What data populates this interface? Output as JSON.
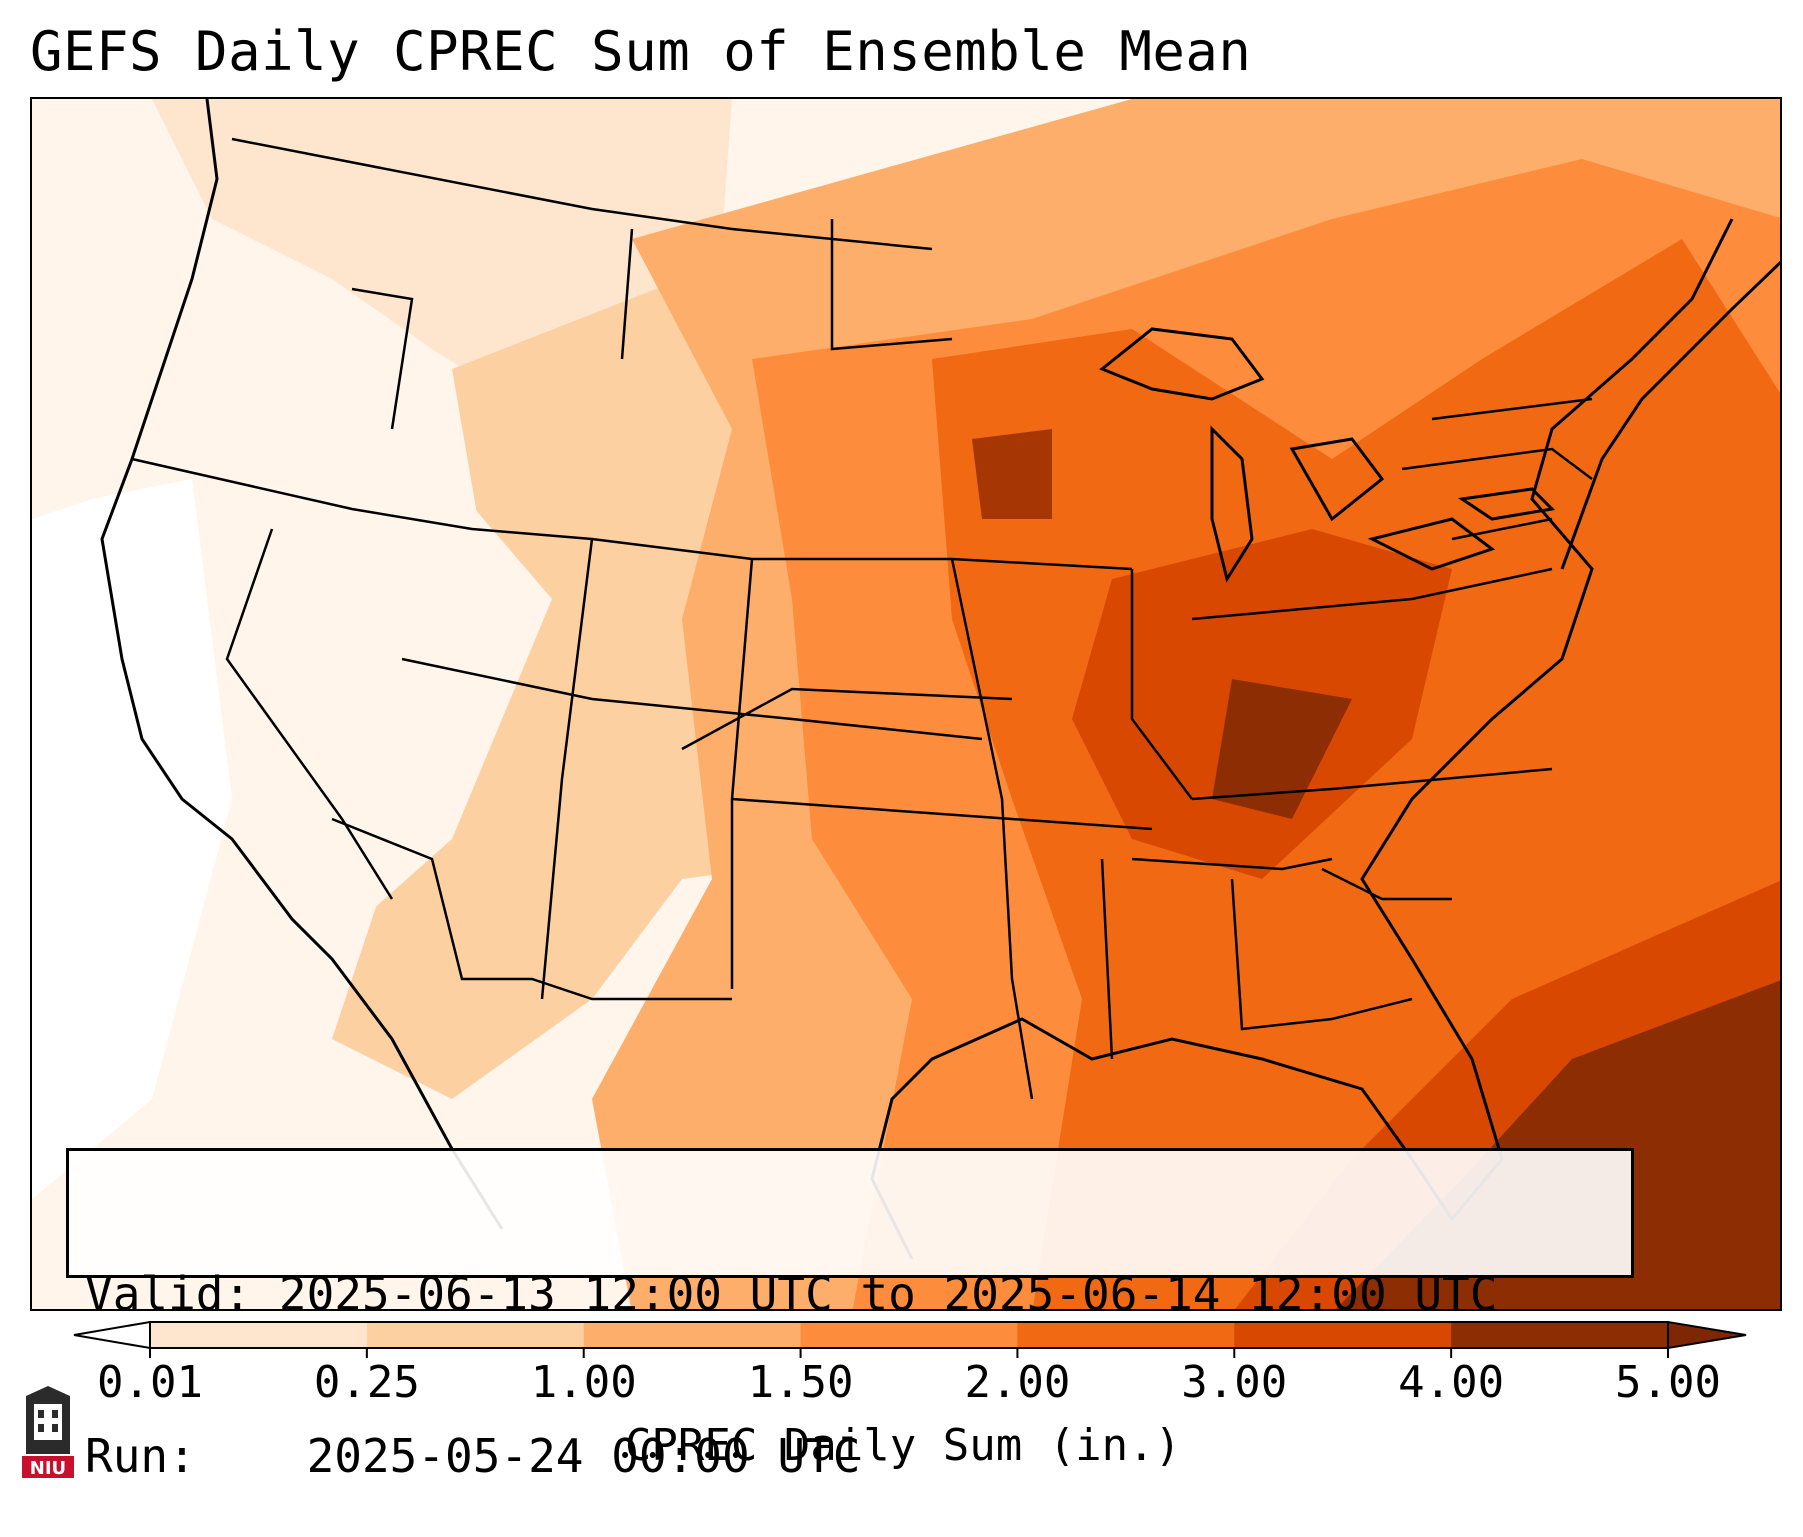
{
  "title": "GEFS Daily CPREC Sum of Ensemble Mean",
  "info": {
    "valid_label": "Valid:",
    "valid_value": "2025-06-13 12:00 UTC to 2025-06-14 12:00 UTC",
    "run_label": "Run:",
    "run_value": "2025-05-24 00:00 UTC"
  },
  "colorbar": {
    "label": "CPREC Daily Sum (in.)",
    "ticks": [
      "0.01",
      "0.25",
      "1.00",
      "1.50",
      "2.00",
      "3.00",
      "4.00",
      "5.00"
    ],
    "colors": [
      "#fff5eb",
      "#fee6ce",
      "#fdd0a2",
      "#fdae6b",
      "#fd8d3c",
      "#f16913",
      "#d94801",
      "#8c2d04"
    ],
    "under_color": "#ffffff",
    "over_color": "#7f2704"
  },
  "logo": {
    "text": "NIU",
    "name": "niu-logo"
  }
}
